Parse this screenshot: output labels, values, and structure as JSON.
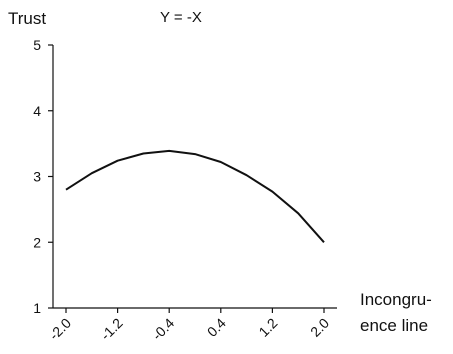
{
  "chart_data": {
    "type": "line",
    "title": "Y = -X",
    "ylabel": "Trust",
    "xlabel": "Incongru-\nence line",
    "ylim": [
      1,
      5
    ],
    "xlim": [
      -2.0,
      2.0
    ],
    "y_ticks": [
      "1",
      "2",
      "3",
      "4",
      "5"
    ],
    "x_ticks": [
      "-2.0",
      "-1.2",
      "-0.4",
      "0.4",
      "1.2",
      "2.0"
    ],
    "x_tick_values": [
      -2.0,
      -1.2,
      -0.4,
      0.4,
      1.2,
      2.0
    ],
    "grid": false,
    "series": [
      {
        "x": [
          -2.0,
          -1.6,
          -1.2,
          -0.8,
          -0.4,
          0.0,
          0.4,
          0.8,
          1.2,
          1.6,
          2.0
        ],
        "y": [
          2.8,
          3.05,
          3.24,
          3.35,
          3.39,
          3.34,
          3.22,
          3.02,
          2.77,
          2.44,
          2.0
        ],
        "color": "#111111"
      }
    ]
  }
}
